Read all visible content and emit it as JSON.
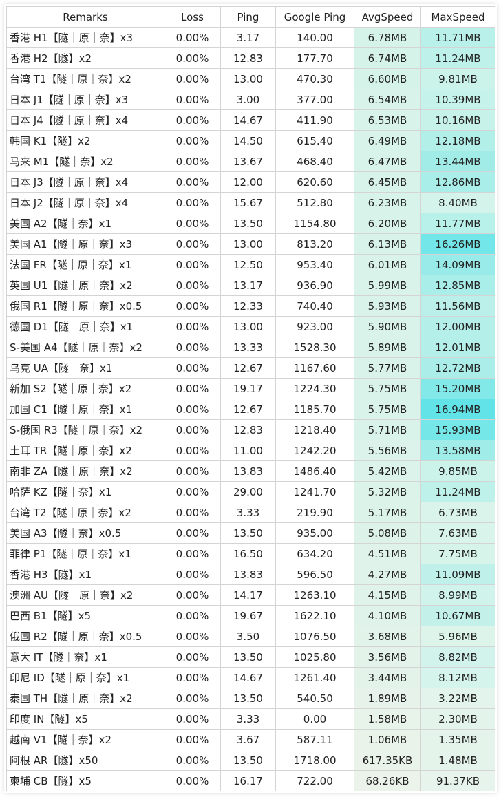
{
  "headers": [
    "Remarks",
    "Loss",
    "Ping",
    "Google Ping",
    "AvgSpeed",
    "MaxSpeed"
  ],
  "rows": [
    {
      "remarks": "香港 H1【隧｜原｜奈】x3",
      "loss": "0.00%",
      "ping": "3.17",
      "gping": "140.00",
      "avg": "6.78MB",
      "max": "11.71MB",
      "avg_color": "#d6f3ea",
      "max_color": "#b9f0ea"
    },
    {
      "remarks": "香港 H2【隧】x2",
      "loss": "0.00%",
      "ping": "12.83",
      "gping": "177.70",
      "avg": "6.74MB",
      "max": "11.24MB",
      "avg_color": "#d6f3ea",
      "max_color": "#bdf1ea"
    },
    {
      "remarks": "台湾 T1【隧｜原｜奈】x2",
      "loss": "0.00%",
      "ping": "13.00",
      "gping": "470.30",
      "avg": "6.60MB",
      "max": "9.81MB",
      "avg_color": "#d6f3ea",
      "max_color": "#cbf3ea"
    },
    {
      "remarks": "日本 J1【隧｜原｜奈】x3",
      "loss": "0.00%",
      "ping": "3.00",
      "gping": "377.00",
      "avg": "6.54MB",
      "max": "10.39MB",
      "avg_color": "#d7f3ea",
      "max_color": "#c5f2ea"
    },
    {
      "remarks": "日本 J4【隧｜原｜奈】x4",
      "loss": "0.00%",
      "ping": "14.67",
      "gping": "411.90",
      "avg": "6.53MB",
      "max": "10.16MB",
      "avg_color": "#d7f3ea",
      "max_color": "#c7f2ea"
    },
    {
      "remarks": "韩国 K1【隧】x2",
      "loss": "0.00%",
      "ping": "14.50",
      "gping": "615.40",
      "avg": "6.49MB",
      "max": "12.18MB",
      "avg_color": "#d7f3ea",
      "max_color": "#b2efe9"
    },
    {
      "remarks": "马来 M1【隧｜奈】x2",
      "loss": "0.00%",
      "ping": "13.67",
      "gping": "468.40",
      "avg": "6.47MB",
      "max": "13.44MB",
      "avg_color": "#d7f3ea",
      "max_color": "#a2ece8"
    },
    {
      "remarks": "日本 J3【隧｜原｜奈】x4",
      "loss": "0.00%",
      "ping": "12.00",
      "gping": "620.60",
      "avg": "6.45MB",
      "max": "12.86MB",
      "avg_color": "#d7f3ea",
      "max_color": "#a9eee9"
    },
    {
      "remarks": "日本 J2【隧｜原｜奈】x4",
      "loss": "0.00%",
      "ping": "15.67",
      "gping": "512.80",
      "avg": "6.23MB",
      "max": "8.40MB",
      "avg_color": "#d8f3ea",
      "max_color": "#d4f4eb"
    },
    {
      "remarks": "美国 A2【隧｜奈】x1",
      "loss": "0.00%",
      "ping": "13.50",
      "gping": "1154.80",
      "avg": "6.20MB",
      "max": "11.77MB",
      "avg_color": "#d8f3ea",
      "max_color": "#b8f0ea"
    },
    {
      "remarks": "美国 A1【隧｜原｜奈】x3",
      "loss": "0.00%",
      "ping": "13.00",
      "gping": "813.20",
      "avg": "6.13MB",
      "max": "16.26MB",
      "avg_color": "#d8f3ea",
      "max_color": "#72e6e8"
    },
    {
      "remarks": "法国 FR【隧｜原｜奈】x1",
      "loss": "0.00%",
      "ping": "12.50",
      "gping": "953.40",
      "avg": "6.01MB",
      "max": "14.09MB",
      "avg_color": "#d9f3ea",
      "max_color": "#98ebe8"
    },
    {
      "remarks": "英国 U1【隧｜原｜奈】x2",
      "loss": "0.00%",
      "ping": "13.17",
      "gping": "936.90",
      "avg": "5.99MB",
      "max": "12.85MB",
      "avg_color": "#d9f3ea",
      "max_color": "#a9eee9"
    },
    {
      "remarks": "俄国 R1【隧｜原｜奈】x0.5",
      "loss": "0.00%",
      "ping": "12.33",
      "gping": "740.40",
      "avg": "5.93MB",
      "max": "11.56MB",
      "avg_color": "#d9f3ea",
      "max_color": "#bbf0ea"
    },
    {
      "remarks": "德国 D1【隧｜原｜奈】x1",
      "loss": "0.00%",
      "ping": "13.00",
      "gping": "923.00",
      "avg": "5.90MB",
      "max": "12.00MB",
      "avg_color": "#d9f3ea",
      "max_color": "#b5efe9"
    },
    {
      "remarks": "S-美国 A4【隧｜原｜奈】x2",
      "loss": "0.00%",
      "ping": "13.33",
      "gping": "1528.30",
      "avg": "5.89MB",
      "max": "12.01MB",
      "avg_color": "#d9f3ea",
      "max_color": "#b5efe9"
    },
    {
      "remarks": "乌克 UA【隧｜奈】x1",
      "loss": "0.00%",
      "ping": "12.67",
      "gping": "1167.60",
      "avg": "5.77MB",
      "max": "12.72MB",
      "avg_color": "#daf3ea",
      "max_color": "#abeee9"
    },
    {
      "remarks": "新加 S2【隧｜原｜奈】x2",
      "loss": "0.00%",
      "ping": "19.17",
      "gping": "1224.30",
      "avg": "5.75MB",
      "max": "15.20MB",
      "avg_color": "#daf3ea",
      "max_color": "#82e9e8"
    },
    {
      "remarks": "加国 C1【隧｜原｜奈】x1",
      "loss": "0.00%",
      "ping": "12.67",
      "gping": "1185.70",
      "avg": "5.75MB",
      "max": "16.94MB",
      "avg_color": "#daf3ea",
      "max_color": "#62e3e7"
    },
    {
      "remarks": "S-俄国 R3【隧｜原｜奈】x2",
      "loss": "0.00%",
      "ping": "12.83",
      "gping": "1218.40",
      "avg": "5.71MB",
      "max": "15.93MB",
      "avg_color": "#daf3ea",
      "max_color": "#76e7e8"
    },
    {
      "remarks": "土耳 TR【隧｜原｜奈】x2",
      "loss": "0.00%",
      "ping": "11.00",
      "gping": "1242.20",
      "avg": "5.56MB",
      "max": "13.58MB",
      "avg_color": "#dbf3ea",
      "max_color": "#a0ece8"
    },
    {
      "remarks": "南非 ZA【隧｜原｜奈】x2",
      "loss": "0.00%",
      "ping": "13.83",
      "gping": "1486.40",
      "avg": "5.42MB",
      "max": "9.85MB",
      "avg_color": "#dbf3ea",
      "max_color": "#cbf3ea"
    },
    {
      "remarks": "哈萨 KZ【隧｜奈】x1",
      "loss": "0.00%",
      "ping": "29.00",
      "gping": "1241.70",
      "avg": "5.32MB",
      "max": "11.24MB",
      "avg_color": "#dcf3ea",
      "max_color": "#bdf1ea"
    },
    {
      "remarks": "台湾 T2【隧｜原｜奈】x2",
      "loss": "0.00%",
      "ping": "3.33",
      "gping": "219.90",
      "avg": "5.17MB",
      "max": "6.73MB",
      "avg_color": "#dcf3ea",
      "max_color": "#dbf4eb"
    },
    {
      "remarks": "美国 A3【隧｜奈】x0.5",
      "loss": "0.00%",
      "ping": "13.50",
      "gping": "935.00",
      "avg": "5.08MB",
      "max": "7.63MB",
      "avg_color": "#ddf3ea",
      "max_color": "#d8f4eb"
    },
    {
      "remarks": "菲律 P1【隧｜原｜奈】x1",
      "loss": "0.00%",
      "ping": "16.50",
      "gping": "634.20",
      "avg": "4.51MB",
      "max": "7.75MB",
      "avg_color": "#dff3ea",
      "max_color": "#d7f4eb"
    },
    {
      "remarks": "香港 H3【隧】x1",
      "loss": "0.00%",
      "ping": "13.83",
      "gping": "596.50",
      "avg": "4.27MB",
      "max": "11.09MB",
      "avg_color": "#e0f3ea",
      "max_color": "#bff1ea"
    },
    {
      "remarks": "澳洲 AU【隧｜原｜奈】x2",
      "loss": "0.00%",
      "ping": "14.17",
      "gping": "1263.10",
      "avg": "4.15MB",
      "max": "8.99MB",
      "avg_color": "#e0f3ea",
      "max_color": "#d0f3eb"
    },
    {
      "remarks": "巴西 B1【隧】x5",
      "loss": "0.00%",
      "ping": "19.67",
      "gping": "1622.10",
      "avg": "4.10MB",
      "max": "10.67MB",
      "avg_color": "#e0f3ea",
      "max_color": "#c3f1ea"
    },
    {
      "remarks": "俄国 R2【隧｜原｜奈】x0.5",
      "loss": "0.00%",
      "ping": "3.50",
      "gping": "1076.50",
      "avg": "3.68MB",
      "max": "5.96MB",
      "avg_color": "#e2f3ea",
      "max_color": "#ddf4eb"
    },
    {
      "remarks": "意大 IT【隧｜奈】x1",
      "loss": "0.00%",
      "ping": "13.50",
      "gping": "1025.80",
      "avg": "3.56MB",
      "max": "8.82MB",
      "avg_color": "#e3f3ea",
      "max_color": "#d1f3eb"
    },
    {
      "remarks": "印尼 ID【隧｜原｜奈】x1",
      "loss": "0.00%",
      "ping": "14.67",
      "gping": "1261.40",
      "avg": "3.44MB",
      "max": "8.12MB",
      "avg_color": "#e3f3ea",
      "max_color": "#d5f4eb"
    },
    {
      "remarks": "泰国 TH【隧｜原｜奈】x2",
      "loss": "0.00%",
      "ping": "13.50",
      "gping": "540.50",
      "avg": "1.89MB",
      "max": "3.22MB",
      "avg_color": "#e7f3ea",
      "max_color": "#e2f4eb"
    },
    {
      "remarks": "印度 IN【隧】x5",
      "loss": "0.00%",
      "ping": "3.33",
      "gping": "0.00",
      "avg": "1.58MB",
      "max": "2.30MB",
      "avg_color": "#e8f3ea",
      "max_color": "#e3f4eb"
    },
    {
      "remarks": "越南 V1【隧｜奈】x2",
      "loss": "0.00%",
      "ping": "3.67",
      "gping": "587.11",
      "avg": "1.06MB",
      "max": "1.35MB",
      "avg_color": "#e9f3ea",
      "max_color": "#e5f4eb"
    },
    {
      "remarks": "阿根 AR【隧】x50",
      "loss": "0.00%",
      "ping": "13.50",
      "gping": "1718.00",
      "avg": "617.35KB",
      "max": "1.48MB",
      "avg_color": "#eaf3ea",
      "max_color": "#e5f4eb"
    },
    {
      "remarks": "柬埔 CB【隧】x5",
      "loss": "0.00%",
      "ping": "16.17",
      "gping": "722.00",
      "avg": "68.26KB",
      "max": "91.37KB",
      "avg_color": "#ebf3ea",
      "max_color": "#e7f4eb"
    }
  ]
}
